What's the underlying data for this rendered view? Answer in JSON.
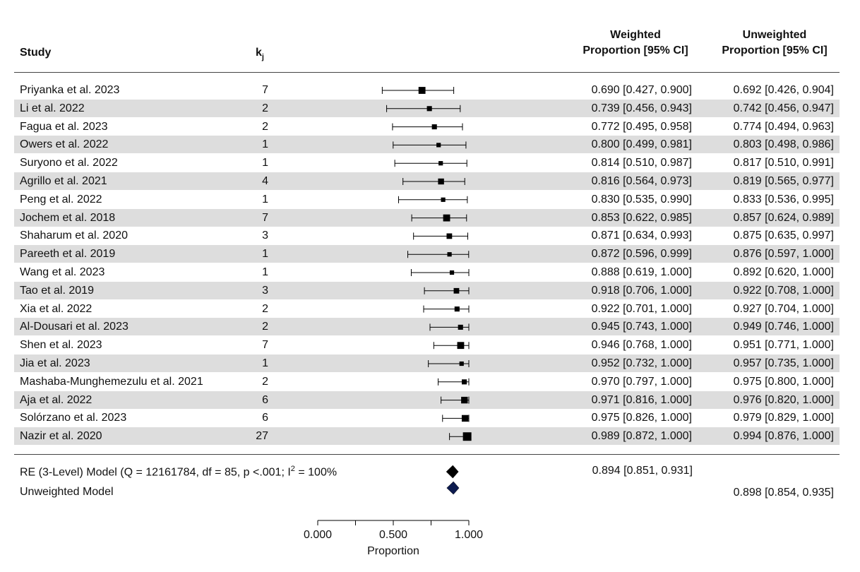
{
  "header": {
    "study": "Study",
    "k_main": "k",
    "k_sub": "j",
    "weighted_line1": "Weighted",
    "weighted_line2": "Proportion [95% CI]",
    "unweighted_line1": "Unweighted",
    "unweighted_line2": "Proportion [95% CI]"
  },
  "model": {
    "re_label_prefix": "RE (3-Level) Model (Q = 12161784, df = 85, p <.001; I",
    "re_label_sup": "2",
    "re_label_suffix": " = 100%",
    "re_value": "0.894 [0.851, 0.931]",
    "unweighted_label": "Unweighted Model",
    "unweighted_value": "0.898 [0.854, 0.935]"
  },
  "chart_data": {
    "type": "forest",
    "xlabel": "Proportion",
    "xticks": [
      0.0,
      0.25,
      0.5,
      0.75,
      1.0
    ],
    "xtick_labels": [
      "0.000",
      "",
      "0.500",
      "",
      "1.000"
    ],
    "xlim": [
      0.0,
      1.0
    ],
    "rows": [
      {
        "study": "Priyanka et al. 2023",
        "k": "7",
        "est": 0.69,
        "lo": 0.427,
        "hi": 0.9,
        "weighted": "0.690 [0.427, 0.900]",
        "unweighted": "0.692 [0.426, 0.904]"
      },
      {
        "study": "Li et al. 2022",
        "k": "2",
        "est": 0.739,
        "lo": 0.456,
        "hi": 0.943,
        "weighted": "0.739 [0.456, 0.943]",
        "unweighted": "0.742 [0.456, 0.947]"
      },
      {
        "study": "Fagua et al. 2023",
        "k": "2",
        "est": 0.772,
        "lo": 0.495,
        "hi": 0.958,
        "weighted": "0.772 [0.495, 0.958]",
        "unweighted": "0.774 [0.494, 0.963]"
      },
      {
        "study": "Owers et al. 2022",
        "k": "1",
        "est": 0.8,
        "lo": 0.499,
        "hi": 0.981,
        "weighted": "0.800 [0.499, 0.981]",
        "unweighted": "0.803 [0.498, 0.986]"
      },
      {
        "study": "Suryono et al. 2022",
        "k": "1",
        "est": 0.814,
        "lo": 0.51,
        "hi": 0.987,
        "weighted": "0.814 [0.510, 0.987]",
        "unweighted": "0.817 [0.510, 0.991]"
      },
      {
        "study": "Agrillo et al. 2021",
        "k": "4",
        "est": 0.816,
        "lo": 0.564,
        "hi": 0.973,
        "weighted": "0.816 [0.564, 0.973]",
        "unweighted": "0.819 [0.565, 0.977]"
      },
      {
        "study": "Peng et al. 2022",
        "k": "1",
        "est": 0.83,
        "lo": 0.535,
        "hi": 0.99,
        "weighted": "0.830 [0.535, 0.990]",
        "unweighted": "0.833 [0.536, 0.995]"
      },
      {
        "study": "Jochem et al. 2018",
        "k": "7",
        "est": 0.853,
        "lo": 0.622,
        "hi": 0.985,
        "weighted": "0.853 [0.622, 0.985]",
        "unweighted": "0.857 [0.624, 0.989]"
      },
      {
        "study": "Shaharum et al. 2020",
        "k": "3",
        "est": 0.871,
        "lo": 0.634,
        "hi": 0.993,
        "weighted": "0.871 [0.634, 0.993]",
        "unweighted": "0.875 [0.635, 0.997]"
      },
      {
        "study": "Pareeth et al. 2019",
        "k": "1",
        "est": 0.872,
        "lo": 0.596,
        "hi": 0.999,
        "weighted": "0.872 [0.596, 0.999]",
        "unweighted": "0.876 [0.597, 1.000]"
      },
      {
        "study": "Wang et al. 2023",
        "k": "1",
        "est": 0.888,
        "lo": 0.619,
        "hi": 1.0,
        "weighted": "0.888 [0.619, 1.000]",
        "unweighted": "0.892 [0.620, 1.000]"
      },
      {
        "study": "Tao et al. 2019",
        "k": "3",
        "est": 0.918,
        "lo": 0.706,
        "hi": 1.0,
        "weighted": "0.918 [0.706, 1.000]",
        "unweighted": "0.922 [0.708, 1.000]"
      },
      {
        "study": "Xia et al. 2022",
        "k": "2",
        "est": 0.922,
        "lo": 0.701,
        "hi": 1.0,
        "weighted": "0.922 [0.701, 1.000]",
        "unweighted": "0.927 [0.704, 1.000]"
      },
      {
        "study": "Al-Dousari et al. 2023",
        "k": "2",
        "est": 0.945,
        "lo": 0.743,
        "hi": 1.0,
        "weighted": "0.945 [0.743, 1.000]",
        "unweighted": "0.949 [0.746, 1.000]"
      },
      {
        "study": "Shen et al. 2023",
        "k": "7",
        "est": 0.946,
        "lo": 0.768,
        "hi": 1.0,
        "weighted": "0.946 [0.768, 1.000]",
        "unweighted": "0.951 [0.771, 1.000]"
      },
      {
        "study": "Jia et al. 2023",
        "k": "1",
        "est": 0.952,
        "lo": 0.732,
        "hi": 1.0,
        "weighted": "0.952 [0.732, 1.000]",
        "unweighted": "0.957 [0.735, 1.000]"
      },
      {
        "study": "Mashaba-Munghemezulu et al. 2021",
        "k": "2",
        "est": 0.97,
        "lo": 0.797,
        "hi": 1.0,
        "weighted": "0.970 [0.797, 1.000]",
        "unweighted": "0.975 [0.800, 1.000]"
      },
      {
        "study": "Aja et al. 2022",
        "k": "6",
        "est": 0.971,
        "lo": 0.816,
        "hi": 1.0,
        "weighted": "0.971 [0.816, 1.000]",
        "unweighted": "0.976 [0.820, 1.000]"
      },
      {
        "study": "Solórzano et al. 2023",
        "k": "6",
        "est": 0.975,
        "lo": 0.826,
        "hi": 1.0,
        "weighted": "0.975 [0.826, 1.000]",
        "unweighted": "0.979 [0.829, 1.000]"
      },
      {
        "study": "Nazir et al. 2020",
        "k": "27",
        "est": 0.989,
        "lo": 0.872,
        "hi": 1.0,
        "weighted": "0.989 [0.872, 1.000]",
        "unweighted": "0.994 [0.876, 1.000]"
      }
    ],
    "summary": [
      {
        "name": "RE (3-Level) Model",
        "est": 0.894,
        "lo": 0.851,
        "hi": 0.931,
        "color": "#000000"
      },
      {
        "name": "Unweighted Model",
        "est": 0.898,
        "lo": 0.854,
        "hi": 0.935,
        "color": "#0d1b4f"
      }
    ]
  }
}
